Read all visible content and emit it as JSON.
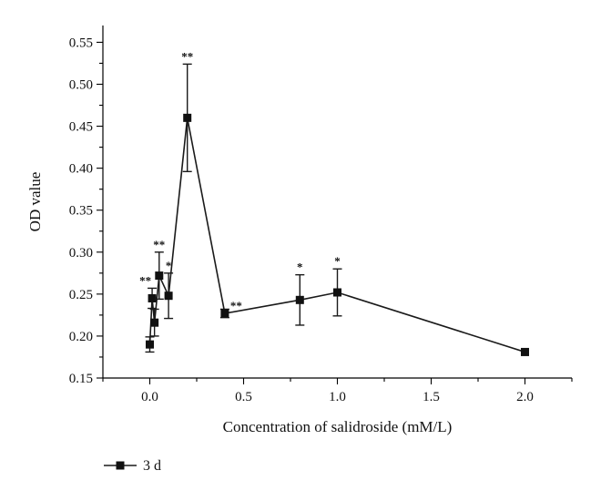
{
  "chart_data": {
    "type": "line",
    "title": "",
    "xlabel": "Concentration of salidroside (mM/L)",
    "ylabel": "OD value",
    "xlim": [
      -0.25,
      2.25
    ],
    "ylim": [
      0.15,
      0.57
    ],
    "x_ticks": [
      0.0,
      0.5,
      1.0,
      1.5,
      2.0
    ],
    "x_tick_labels": [
      "0.0",
      "0.5",
      "1.0",
      "1.5",
      "2.0"
    ],
    "y_ticks": [
      0.15,
      0.2,
      0.25,
      0.3,
      0.35,
      0.4,
      0.45,
      0.5,
      0.55
    ],
    "y_tick_labels": [
      "0.15",
      "0.20",
      "0.25",
      "0.30",
      "0.35",
      "0.40",
      "0.45",
      "0.50",
      "0.55"
    ],
    "grid": false,
    "legend_position": "bottom-left",
    "series": [
      {
        "name": "3 d",
        "color": "#111111",
        "marker": "square",
        "x": [
          0.0,
          0.0125,
          0.025,
          0.05,
          0.1,
          0.2,
          0.4,
          0.8,
          1.0,
          2.0
        ],
        "y": [
          0.19,
          0.245,
          0.216,
          0.272,
          0.248,
          0.46,
          0.227,
          0.243,
          0.252,
          0.181
        ],
        "err": [
          0.009,
          0.012,
          0.016,
          0.028,
          0.027,
          0.064,
          0.005,
          0.03,
          0.028,
          0.0
        ],
        "significance": [
          "",
          "**",
          "",
          "**",
          "*",
          "**",
          "**",
          "*",
          "*",
          ""
        ]
      }
    ]
  }
}
